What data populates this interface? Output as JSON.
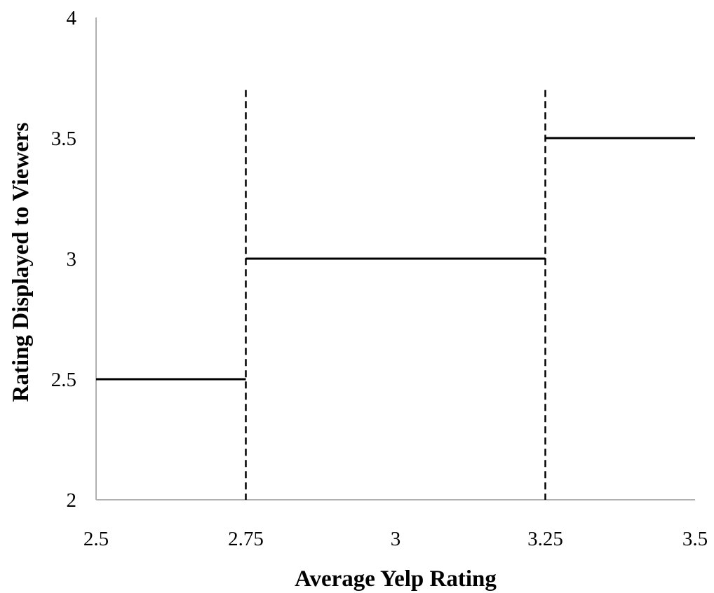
{
  "chart_data": {
    "type": "line",
    "title": "",
    "xlabel": "Average Yelp Rating",
    "ylabel": "Rating Displayed to Viewers",
    "xlim": [
      2.5,
      3.5
    ],
    "ylim": [
      2,
      4
    ],
    "x_ticks": [
      "2.5",
      "2.75",
      "3",
      "3.25",
      "3.5"
    ],
    "y_ticks": [
      "2",
      "2.5",
      "3",
      "3.5",
      "4"
    ],
    "grid": false,
    "legend": "none",
    "series": [
      {
        "style": "solid",
        "segments": [
          {
            "x": [
              2.5,
              2.75
            ],
            "y": [
              2.5,
              2.5
            ]
          },
          {
            "x": [
              2.75,
              3.25
            ],
            "y": [
              3.0,
              3.0
            ]
          },
          {
            "x": [
              3.25,
              3.5
            ],
            "y": [
              3.5,
              3.5
            ]
          }
        ]
      }
    ],
    "thresholds": [
      {
        "x": 2.75,
        "y_from": 2,
        "y_to": 3.7,
        "style": "dashed"
      },
      {
        "x": 3.25,
        "y_from": 2,
        "y_to": 3.7,
        "style": "dashed"
      }
    ]
  },
  "colors": {
    "line": "#000000",
    "axis": "#b0b0b0",
    "background": "#ffffff"
  }
}
